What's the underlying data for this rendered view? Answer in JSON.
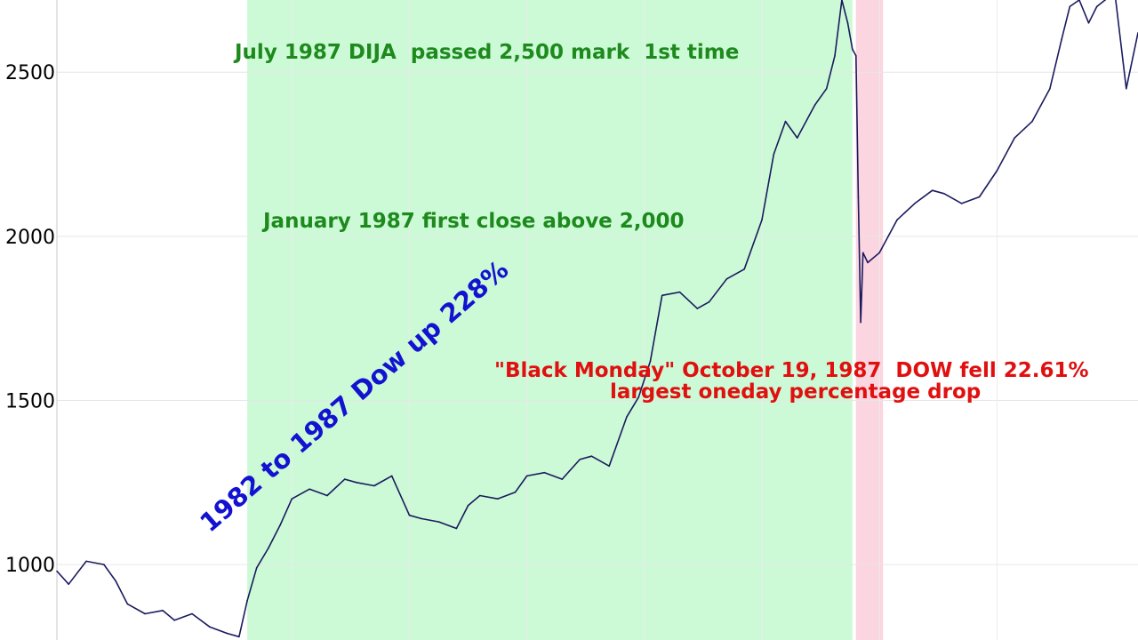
{
  "chart_data": {
    "type": "line",
    "title": "",
    "xlabel": "",
    "ylabel": "",
    "ylim": [
      770,
      2720
    ],
    "grid": true,
    "y_ticks": [
      {
        "value": 1000,
        "label": "1000"
      },
      {
        "value": 1500,
        "label": "1500"
      },
      {
        "value": 2000,
        "label": "2000"
      },
      {
        "value": 2500,
        "label": "2500"
      }
    ],
    "series": [
      {
        "color": "#1a1a5e",
        "x": [
          1981.0,
          1981.1,
          1981.25,
          1981.4,
          1981.5,
          1981.6,
          1981.75,
          1981.9,
          1982.0,
          1982.15,
          1982.3,
          1982.45,
          1982.55,
          1982.62,
          1982.7,
          1982.8,
          1982.9,
          1983.0,
          1983.15,
          1983.3,
          1983.45,
          1983.55,
          1983.7,
          1983.85,
          1984.0,
          1984.1,
          1984.25,
          1984.4,
          1984.5,
          1984.6,
          1984.75,
          1984.9,
          1985.0,
          1985.15,
          1985.3,
          1985.45,
          1985.55,
          1985.7,
          1985.85,
          1985.95,
          1986.05,
          1986.15,
          1986.3,
          1986.45,
          1986.55,
          1986.7,
          1986.85,
          1987.0,
          1987.1,
          1987.2,
          1987.3,
          1987.45,
          1987.55,
          1987.62,
          1987.68,
          1987.73,
          1987.77,
          1987.8,
          1987.82,
          1987.84,
          1987.86,
          1987.9,
          1988.0,
          1988.15,
          1988.3,
          1988.45,
          1988.55,
          1988.7,
          1988.85,
          1989.0,
          1989.15,
          1989.3,
          1989.45,
          1989.55,
          1989.62,
          1989.7,
          1989.78,
          1989.85,
          1989.92,
          1990.0,
          1990.1,
          1990.2
        ],
        "values": [
          980,
          940,
          1010,
          1000,
          950,
          880,
          850,
          860,
          830,
          850,
          810,
          790,
          780,
          890,
          990,
          1050,
          1120,
          1200,
          1230,
          1210,
          1260,
          1250,
          1240,
          1270,
          1150,
          1140,
          1130,
          1110,
          1180,
          1210,
          1200,
          1220,
          1270,
          1280,
          1260,
          1320,
          1330,
          1300,
          1450,
          1510,
          1620,
          1820,
          1830,
          1780,
          1800,
          1870,
          1900,
          2050,
          2250,
          2350,
          2300,
          2400,
          2450,
          2550,
          2720,
          2650,
          2570,
          2550,
          2120,
          1738,
          1950,
          1920,
          1950,
          2050,
          2100,
          2140,
          2130,
          2100,
          2120,
          2200,
          2300,
          2350,
          2450,
          2600,
          2700,
          2720,
          2650,
          2700,
          2720,
          2750,
          2450,
          2620
        ]
      }
    ],
    "spans": [
      {
        "from": 1982.62,
        "to": 1987.77,
        "color": "#ccfad6"
      },
      {
        "from": 1987.8,
        "to": 1988.03,
        "color": "#fbd5df"
      }
    ],
    "annotations": [
      {
        "text": "July 1987 DIJA  passed 2,500 mark  1st time",
        "color": "#1e8a1e"
      },
      {
        "text": "January 1987 first close above 2,000",
        "color": "#1e8a1e"
      },
      {
        "text": "1982 to 1987 Dow up 228%",
        "color": "#1212d0"
      },
      {
        "text": "\"Black Monday\" October 19, 1987  DOW fell 22.61%",
        "color": "#e01010"
      },
      {
        "text": "largest oneday percentage drop",
        "color": "#e01010"
      }
    ]
  }
}
